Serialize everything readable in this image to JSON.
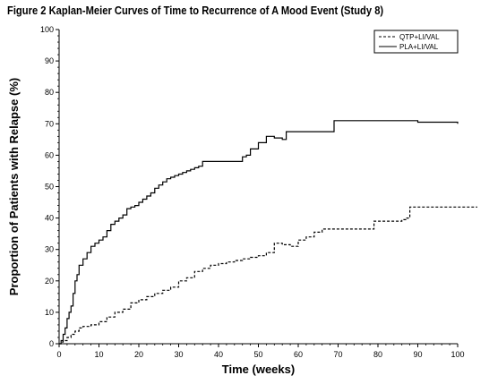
{
  "figure": {
    "title": "Figure 2 Kaplan-Meier Curves of Time to Recurrence of A Mood Event (Study 8)"
  },
  "chart_data": {
    "type": "line",
    "step": true,
    "title": "Figure 2 Kaplan-Meier Curves of Time to Recurrence of A Mood Event (Study 8)",
    "xlabel": "Time (weeks)",
    "ylabel": "Proportion of Patients with Relapse (%)",
    "xlim": [
      0,
      100
    ],
    "ylim": [
      0,
      100
    ],
    "xticks": [
      0,
      10,
      20,
      30,
      40,
      50,
      60,
      70,
      80,
      90,
      100
    ],
    "yticks": [
      0,
      10,
      20,
      30,
      40,
      50,
      60,
      70,
      80,
      90,
      100
    ],
    "grid": false,
    "legend_position": "top-right",
    "series": [
      {
        "name": "QTP+LI/VAL",
        "line_style": "dashed",
        "color": "#000000",
        "x": [
          0,
          0.5,
          1,
          2,
          3,
          4,
          5,
          6,
          8,
          10,
          12,
          14,
          16,
          18,
          20,
          22,
          24,
          26,
          28,
          30,
          32,
          34,
          36,
          38,
          40,
          42,
          44,
          46,
          48,
          50,
          52,
          54,
          56,
          58,
          60,
          62,
          64,
          66,
          70,
          78,
          79,
          86,
          87,
          88,
          105
        ],
        "y": [
          0,
          0.5,
          1,
          2,
          3,
          4,
          5,
          5.5,
          6,
          7,
          8.5,
          10,
          11,
          13,
          14,
          15,
          16,
          17,
          18,
          20,
          21,
          23,
          24,
          25,
          25.5,
          26,
          26.5,
          27,
          27.5,
          28,
          29,
          32,
          31.5,
          31,
          33,
          34,
          35.5,
          36.5,
          36.5,
          36.5,
          39,
          39.5,
          40,
          43.5,
          43.5
        ]
      },
      {
        "name": "PLA+LI/VAL",
        "line_style": "solid",
        "color": "#000000",
        "x": [
          0,
          0.5,
          1,
          1.5,
          2,
          2.5,
          3,
          3.5,
          4,
          4.5,
          5,
          6,
          7,
          8,
          9,
          10,
          11,
          12,
          13,
          14,
          15,
          16,
          17,
          18,
          19,
          20,
          21,
          22,
          23,
          24,
          25,
          26,
          27,
          28,
          29,
          30,
          31,
          32,
          33,
          34,
          35,
          36,
          40,
          45,
          46,
          47,
          48,
          50,
          52,
          54,
          56,
          57,
          58,
          60,
          62,
          64,
          66,
          68,
          69,
          80,
          90,
          100
        ],
        "y": [
          0,
          1,
          3,
          5,
          8,
          10,
          12,
          16,
          20,
          22,
          25,
          27,
          29,
          31,
          32,
          33,
          34,
          36,
          38,
          39,
          40,
          41,
          43,
          43.5,
          44,
          45,
          46,
          47,
          48,
          49.5,
          50.5,
          51.5,
          52.5,
          53,
          53.5,
          54,
          54.5,
          55,
          55.5,
          56,
          56.5,
          58,
          58,
          58,
          59.5,
          60,
          62,
          64,
          66,
          65.5,
          65,
          67.5,
          67.5,
          67.5,
          67.5,
          67.5,
          67.5,
          67.5,
          71,
          71,
          70.5,
          70
        ]
      }
    ]
  }
}
